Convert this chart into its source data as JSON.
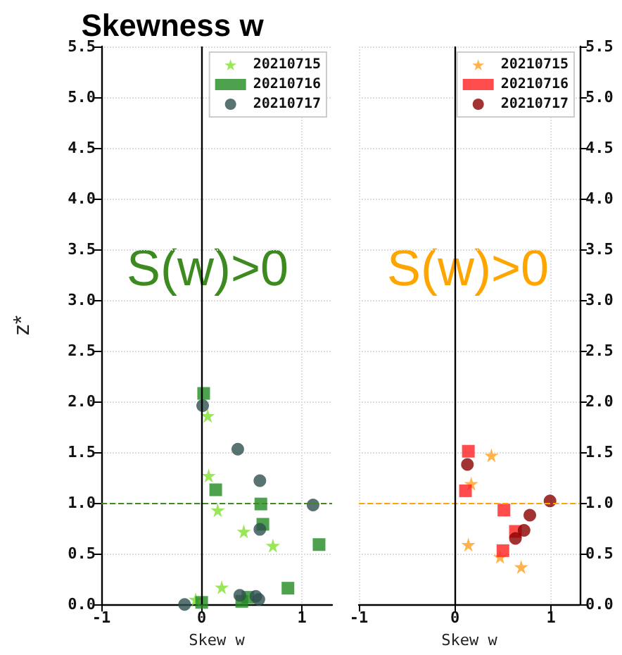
{
  "chart_data": [
    {
      "type": "scatter",
      "title": "Skewness w",
      "xlabel": "Skew w",
      "ylabel": "z*",
      "xlim": [
        -1,
        1.3
      ],
      "xticks": [
        -1,
        0,
        1
      ],
      "ylim": [
        0,
        5.5
      ],
      "yticks": [
        {
          "value": 0,
          "label": "0.0"
        },
        {
          "value": 0.5,
          "label": "0.5"
        },
        {
          "value": 1,
          "label": "1.0"
        },
        {
          "value": 1.5,
          "label": "1.5"
        },
        {
          "value": 2,
          "label": "2.0"
        },
        {
          "value": 2.5,
          "label": "2.5"
        },
        {
          "value": 3,
          "label": "3.0"
        },
        {
          "value": 3.5,
          "label": "3.5"
        },
        {
          "value": 4,
          "label": "4.0"
        },
        {
          "value": 4.5,
          "label": "4.5"
        },
        {
          "value": 5,
          "label": "5.0"
        },
        {
          "value": 5.5,
          "label": "5.5"
        }
      ],
      "grid": true,
      "legend": "top right",
      "annotations": [
        "S(w)>0"
      ],
      "ref_lines": [
        {
          "axis": "y",
          "value": 1,
          "color": "#3d8b20",
          "line_style": "dashed"
        },
        {
          "axis": "x",
          "value": 0,
          "color": "#000000",
          "line_style": "solid"
        }
      ],
      "series": [
        {
          "name": "20210715",
          "color": "#7fe030",
          "marker": "star",
          "x": [
            0.06,
            0.07,
            0.16,
            0.42,
            0.71,
            0.2,
            -0.06
          ],
          "values": [
            1.86,
            1.27,
            0.93,
            0.72,
            0.58,
            0.17,
            0.05
          ]
        },
        {
          "name": "20210716",
          "color": "#228b22",
          "marker": "square",
          "x": [
            0.02,
            0.14,
            0.59,
            0.61,
            1.17,
            0.86,
            0.0,
            0.46,
            0.4
          ],
          "values": [
            2.08,
            1.13,
            0.99,
            0.79,
            0.59,
            0.16,
            0.02,
            0.07,
            0.03
          ]
        },
        {
          "name": "20210717",
          "color": "#2f4f4f",
          "marker": "circle",
          "x": [
            0.01,
            0.36,
            0.58,
            1.11,
            0.58,
            -0.17,
            0.38,
            0.54,
            0.57
          ],
          "values": [
            1.96,
            1.53,
            1.22,
            0.98,
            0.74,
            0.0,
            0.09,
            0.08,
            0.05
          ]
        }
      ]
    },
    {
      "type": "scatter",
      "xlabel": "Skew w",
      "xlim": [
        -1,
        1.3
      ],
      "xticks": [
        -1,
        0,
        1
      ],
      "ylim": [
        0,
        5.5
      ],
      "yticks": [
        {
          "value": 0,
          "label": "0.0"
        },
        {
          "value": 0.5,
          "label": "0.5"
        },
        {
          "value": 1,
          "label": "1.0"
        },
        {
          "value": 1.5,
          "label": "1.5"
        },
        {
          "value": 2,
          "label": "2.0"
        },
        {
          "value": 2.5,
          "label": "2.5"
        },
        {
          "value": 3,
          "label": "3.0"
        },
        {
          "value": 3.5,
          "label": "3.5"
        },
        {
          "value": 4,
          "label": "4.0"
        },
        {
          "value": 4.5,
          "label": "4.5"
        },
        {
          "value": 5,
          "label": "5.0"
        },
        {
          "value": 5.5,
          "label": "5.5"
        }
      ],
      "grid": true,
      "legend": "top right",
      "annotations": [
        "S(w)>0"
      ],
      "ref_lines": [
        {
          "axis": "y",
          "value": 1,
          "color": "#ffa500",
          "line_style": "dashed"
        },
        {
          "axis": "x",
          "value": 0,
          "color": "#000000",
          "line_style": "solid"
        }
      ],
      "series": [
        {
          "name": "20210715",
          "color": "#ffa020",
          "marker": "star",
          "x": [
            0.38,
            0.17,
            0.14,
            0.47,
            0.69
          ],
          "values": [
            1.47,
            1.19,
            0.59,
            0.47,
            0.37
          ]
        },
        {
          "name": "20210716",
          "color": "#ff2020",
          "marker": "square",
          "x": [
            0.14,
            0.11,
            0.51,
            0.63,
            0.5
          ],
          "values": [
            1.51,
            1.12,
            0.93,
            0.72,
            0.53
          ]
        },
        {
          "name": "20210717",
          "color": "#8b0000",
          "marker": "circle",
          "x": [
            0.13,
            0.99,
            0.78,
            0.72,
            0.63
          ],
          "values": [
            1.38,
            1.02,
            0.88,
            0.73,
            0.65
          ]
        }
      ]
    }
  ]
}
